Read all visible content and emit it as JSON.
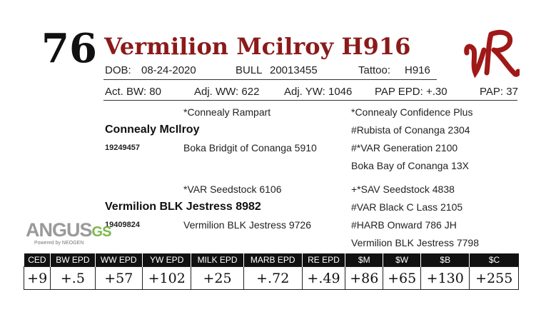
{
  "lot_number": "76",
  "animal_name": "Vermilion Mcilroy H916",
  "logo_text": "VR",
  "info_row1": {
    "dob_label": "DOB:",
    "dob": "08-24-2020",
    "sex_label": "BULL",
    "registration": "20013455",
    "tattoo_label": "Tattoo:",
    "tattoo": "H916"
  },
  "info_row2": {
    "act_bw": "Act. BW: 80",
    "adj_ww": "Adj. WW: 622",
    "adj_yw": "Adj. YW: 1046",
    "pap_epd": "PAP EPD: +.30",
    "pap": "PAP: 37"
  },
  "pedigree": {
    "sire": {
      "name": "Connealy McIlroy",
      "reg": "19249457",
      "sire": "*Connealy Rampart",
      "dam": "Boka Bridgit of Conanga 5910",
      "ss": "*Connealy Confidence Plus",
      "sd": "#Rubista of Conanga 2304",
      "ds": "#*VAR Generation 2100",
      "dd": "Boka Bay of Conanga 13X"
    },
    "dam": {
      "name": "Vermilion BLK Jestress 8982",
      "reg": "19409824",
      "sire": "*VAR Seedstock 6106",
      "dam": "Vermilion BLK Jestress 9726",
      "ss": "+*SAV Seedstock 4838",
      "sd": "#VAR Black C Lass 2105",
      "ds": "#HARB Onward 786 JH",
      "dd": "Vermilion BLK Jestress 7798"
    }
  },
  "angus_logo": {
    "word": "ANGUS",
    "suffix": "GS",
    "tagline": "Powered by NEOGEN"
  },
  "epd": {
    "headers": [
      "CED",
      "BW EPD",
      "WW EPD",
      "YW EPD",
      "MILK EPD",
      "MARB EPD",
      "RE EPD",
      "$M",
      "$W",
      "$B",
      "$C"
    ],
    "values": [
      "+9",
      "+.5",
      "+57",
      "+102",
      "+25",
      "+.72",
      "+.49",
      "+86",
      "+65",
      "+130",
      "+255"
    ]
  },
  "colors": {
    "title": "#8b1a1a",
    "logo": "#a01818",
    "angus_gray": "#9a9a9a",
    "angus_green": "#7bb84a"
  }
}
